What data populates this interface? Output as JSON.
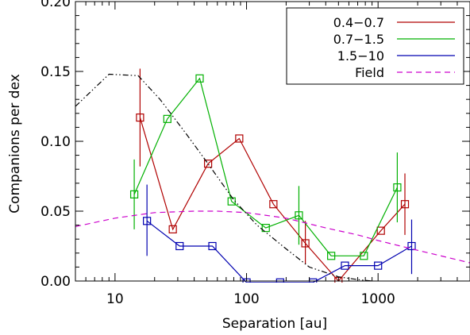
{
  "chart_data": {
    "type": "line",
    "xlabel": "Separation [au]",
    "ylabel": "Companions per dex",
    "xscale": "log",
    "xlim": [
      5,
      5000
    ],
    "ylim": [
      0.0,
      0.2
    ],
    "xticks": [
      {
        "value": 10,
        "label": "10"
      },
      {
        "value": 100,
        "label": "100"
      },
      {
        "value": 1000,
        "label": "1000"
      }
    ],
    "yticks": [
      {
        "value": 0.0,
        "label": "0.00"
      },
      {
        "value": 0.05,
        "label": "0.05"
      },
      {
        "value": 0.1,
        "label": "0.10"
      },
      {
        "value": 0.15,
        "label": "0.15"
      },
      {
        "value": 0.2,
        "label": "0.20"
      }
    ],
    "legend_position": "top-right",
    "grid": false,
    "series": [
      {
        "name": "0.4−0.7",
        "color": "#b00000",
        "marker": "square",
        "x": [
          15.5,
          27.5,
          51,
          88,
          160,
          280,
          500,
          1050,
          1600
        ],
        "y": [
          0.117,
          0.037,
          0.084,
          0.102,
          0.055,
          0.027,
          0.0,
          0.036,
          0.055
        ],
        "err": [
          [
            15.5,
            0.082,
            0.152
          ],
          [
            280,
            0.012,
            0.043
          ],
          [
            1600,
            0.033,
            0.077
          ]
        ]
      },
      {
        "name": "0.7−1.5",
        "color": "#00b000",
        "marker": "square",
        "x": [
          14,
          25,
          44,
          77,
          140,
          250,
          440,
          780,
          1400
        ],
        "y": [
          0.062,
          0.116,
          0.145,
          0.057,
          0.038,
          0.047,
          0.018,
          0.018,
          0.067
        ],
        "err": [
          [
            14,
            0.037,
            0.087
          ],
          [
            250,
            0.026,
            0.068
          ],
          [
            1400,
            0.042,
            0.092
          ]
        ]
      },
      {
        "name": "1.5−10",
        "color": "#0000b0",
        "marker": "square",
        "x": [
          17.5,
          31,
          55,
          100,
          180,
          320,
          560,
          1000,
          1800
        ],
        "y": [
          0.043,
          0.025,
          0.025,
          -0.001,
          -0.001,
          -0.001,
          0.011,
          0.011,
          0.025
        ],
        "err": [
          [
            17.5,
            0.018,
            0.069
          ],
          [
            1800,
            0.005,
            0.044
          ]
        ]
      },
      {
        "name": "Field",
        "color": "#cc00cc",
        "style": "dashed",
        "x": [
          5,
          10,
          20,
          40,
          60,
          100,
          200,
          400,
          700,
          1000,
          2000,
          5000
        ],
        "y": [
          0.039,
          0.045,
          0.049,
          0.05,
          0.05,
          0.049,
          0.045,
          0.038,
          0.033,
          0.029,
          0.022,
          0.013
        ]
      },
      {
        "name": "",
        "color": "#000000",
        "style": "dash-dot-dot",
        "x": [
          5,
          9,
          15,
          22,
          35,
          50,
          80,
          120,
          200,
          300,
          500,
          700,
          900
        ],
        "y": [
          0.125,
          0.148,
          0.147,
          0.13,
          0.105,
          0.085,
          0.058,
          0.04,
          0.023,
          0.01,
          0.003,
          0.001,
          0.0
        ]
      }
    ]
  }
}
